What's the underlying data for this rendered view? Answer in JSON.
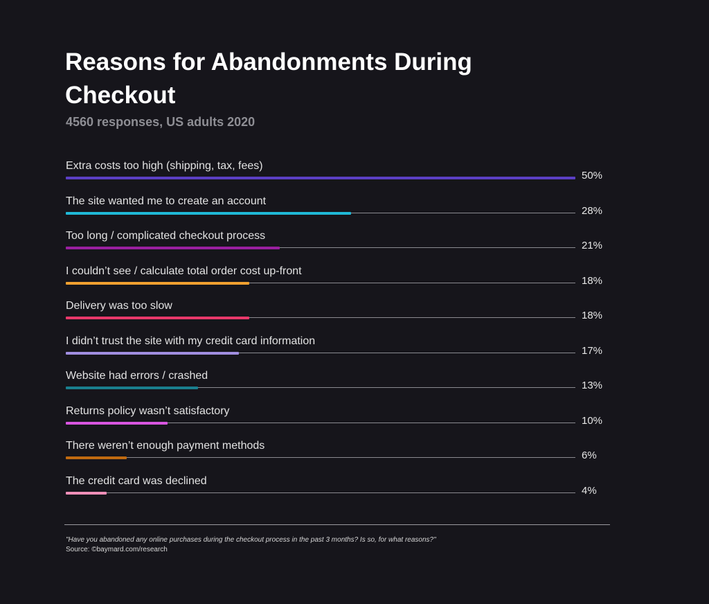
{
  "chart_data": {
    "type": "bar",
    "orientation": "horizontal",
    "title": "Reasons for Abandonments During Checkout",
    "subtitle": "4560 responses, US adults 2020",
    "categories": [
      "Extra costs too high (shipping, tax, fees)",
      "The site wanted me to create an account",
      "Too long / complicated checkout process",
      "I couldn’t see / calculate total order cost up-front",
      "Delivery was too slow",
      "I didn’t trust the site with my credit card information",
      "Website had errors / crashed",
      "Returns policy wasn’t satisfactory",
      "There weren’t enough payment methods",
      "The credit card was declined"
    ],
    "values": [
      50,
      28,
      21,
      18,
      18,
      17,
      13,
      10,
      6,
      4
    ],
    "value_labels": [
      "50%",
      "28%",
      "21%",
      "18%",
      "18%",
      "17%",
      "13%",
      "10%",
      "6%",
      "4%"
    ],
    "colors": [
      "#5b3fc4",
      "#1fb8d6",
      "#9a1fa0",
      "#f0a030",
      "#e8386a",
      "#a08ee0",
      "#1a7f8e",
      "#d855e0",
      "#c06a10",
      "#f08fb8"
    ],
    "xlim": [
      0,
      50
    ],
    "grid": false,
    "legend": "none"
  },
  "footnote": {
    "question": "\"Have you abandoned any online purchases during the checkout process in the past 3 months? Is so, for what reasons?\"",
    "source": "Source: ©baymard.com/research"
  }
}
